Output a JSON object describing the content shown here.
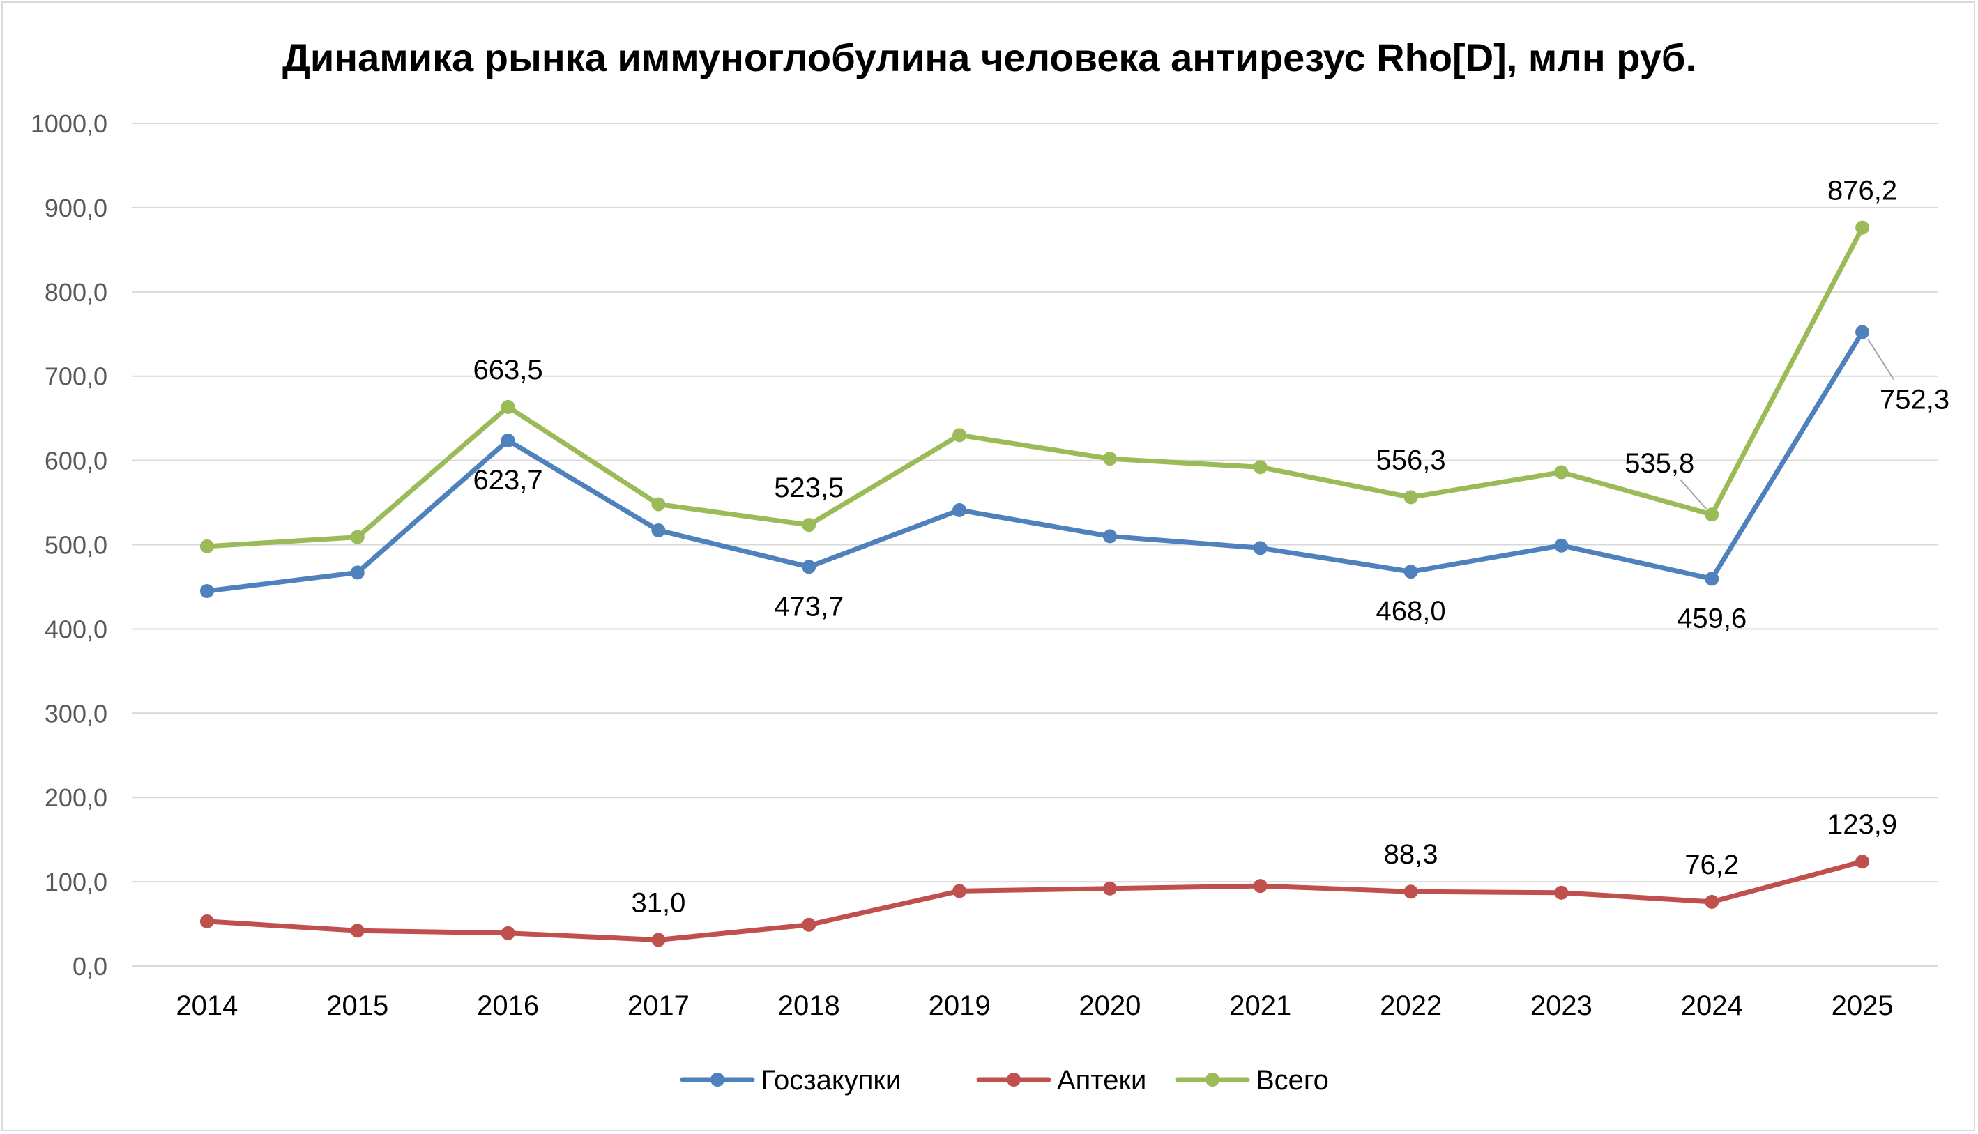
{
  "chart_data": {
    "type": "line",
    "title": "Динамика рынка иммуноглобулина человека антирезус Rho[D], млн руб.",
    "xlabel": "",
    "ylabel": "",
    "categories": [
      "2014",
      "2015",
      "2016",
      "2017",
      "2018",
      "2019",
      "2020",
      "2021",
      "2022",
      "2023",
      "2024",
      "2025"
    ],
    "ylim": [
      0,
      1000
    ],
    "yticks": [
      0,
      100,
      200,
      300,
      400,
      500,
      600,
      700,
      800,
      900,
      1000
    ],
    "ytick_labels": [
      "0,0",
      "100,0",
      "200,0",
      "300,0",
      "400,0",
      "500,0",
      "600,0",
      "700,0",
      "800,0",
      "900,0",
      "1000,0"
    ],
    "grid": true,
    "legend_position": "bottom",
    "series": [
      {
        "name": "Госзакупки",
        "color": "#4f81bd",
        "values": [
          445,
          467,
          623.7,
          517,
          473.7,
          541,
          510,
          496,
          468.0,
          499,
          459.6,
          752.3
        ],
        "labels": [
          {
            "index": 2,
            "text": "623,7",
            "pos": "below"
          },
          {
            "index": 4,
            "text": "473,7",
            "pos": "below"
          },
          {
            "index": 8,
            "text": "468,0",
            "pos": "below"
          },
          {
            "index": 10,
            "text": "459,6",
            "pos": "below"
          },
          {
            "index": 11,
            "text": "752,3",
            "pos": "right-below"
          }
        ]
      },
      {
        "name": "Аптеки",
        "color": "#c0504d",
        "values": [
          53,
          42,
          39,
          31.0,
          49,
          89,
          92,
          95,
          88.3,
          87,
          76.2,
          123.9
        ],
        "labels": [
          {
            "index": 3,
            "text": "31,0",
            "pos": "above"
          },
          {
            "index": 8,
            "text": "88,3",
            "pos": "above"
          },
          {
            "index": 10,
            "text": "76,2",
            "pos": "above"
          },
          {
            "index": 11,
            "text": "123,9",
            "pos": "above"
          }
        ]
      },
      {
        "name": "Всего",
        "color": "#9bbb59",
        "values": [
          498,
          509,
          663.5,
          548,
          523.5,
          630,
          602,
          592,
          556.3,
          586,
          535.8,
          876.2
        ],
        "labels": [
          {
            "index": 2,
            "text": "663,5",
            "pos": "above"
          },
          {
            "index": 4,
            "text": "523,5",
            "pos": "above"
          },
          {
            "index": 8,
            "text": "556,3",
            "pos": "above"
          },
          {
            "index": 10,
            "text": "535,8",
            "pos": "left-above"
          },
          {
            "index": 11,
            "text": "876,2",
            "pos": "above"
          }
        ]
      }
    ]
  }
}
